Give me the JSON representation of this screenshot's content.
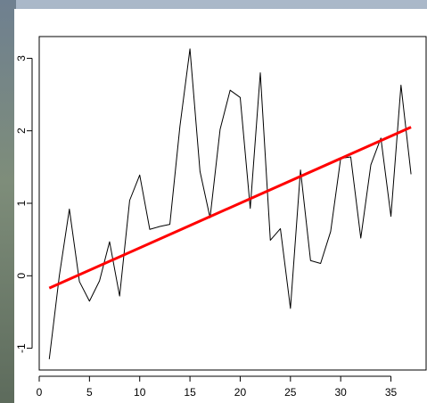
{
  "chart_data": {
    "type": "line",
    "title": "",
    "xlabel": "",
    "ylabel": "",
    "xlim": [
      0,
      38.5
    ],
    "ylim": [
      -1.3,
      3.3
    ],
    "x_ticks": [
      0,
      5,
      10,
      15,
      20,
      25,
      30,
      35
    ],
    "y_ticks": [
      -1,
      0,
      1,
      2,
      3
    ],
    "x_tick_labels": [
      "0",
      "5",
      "10",
      "15",
      "20",
      "25",
      "30",
      "35"
    ],
    "y_tick_labels": [
      "-1",
      "0",
      "1",
      "2",
      "3"
    ],
    "grid": false,
    "legend": "none",
    "series": [
      {
        "color": "#000000",
        "x": [
          1,
          2,
          3,
          4,
          5,
          6,
          7,
          8,
          9,
          10,
          11,
          12,
          13,
          14,
          15,
          16,
          17,
          18,
          19,
          20,
          21,
          22,
          23,
          24,
          25,
          26,
          27,
          28,
          29,
          30,
          31,
          32,
          33,
          34,
          35,
          36,
          37
        ],
        "values": [
          -1.15,
          0.0,
          0.92,
          -0.08,
          -0.35,
          -0.07,
          0.47,
          -0.28,
          1.04,
          1.39,
          0.64,
          0.68,
          0.71,
          2.06,
          3.13,
          1.44,
          0.8,
          2.02,
          2.56,
          2.46,
          0.93,
          2.8,
          0.49,
          0.65,
          -0.45,
          1.46,
          0.21,
          0.17,
          0.61,
          1.62,
          1.64,
          0.52,
          1.53,
          1.9,
          0.82,
          2.63,
          1.4
        ]
      },
      {
        "color": "#ff0000",
        "x": [
          1,
          37
        ],
        "values": [
          -0.17,
          2.05
        ]
      }
    ]
  }
}
